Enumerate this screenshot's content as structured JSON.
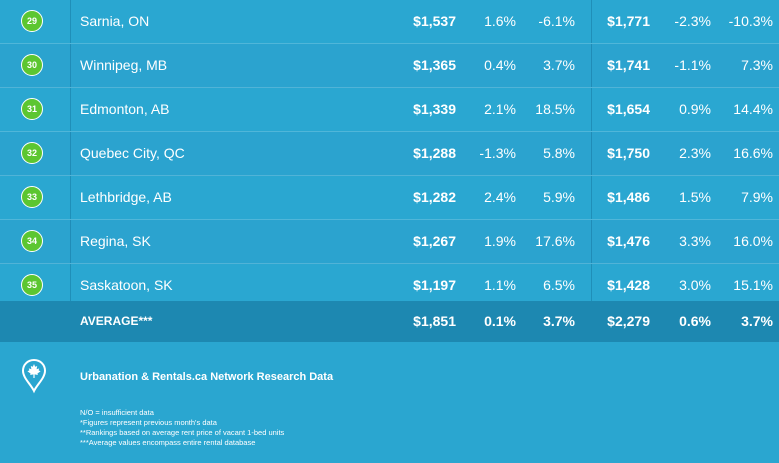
{
  "rows": [
    {
      "rank": "29",
      "city": "Sarnia, ON",
      "one_rent": "$1,537",
      "one_mom": "1.6%",
      "one_yoy": "-6.1%",
      "two_rent": "$1,771",
      "two_mom": "-2.3%",
      "two_yoy": "-10.3%"
    },
    {
      "rank": "30",
      "city": "Winnipeg, MB",
      "one_rent": "$1,365",
      "one_mom": "0.4%",
      "one_yoy": "3.7%",
      "two_rent": "$1,741",
      "two_mom": "-1.1%",
      "two_yoy": "7.3%"
    },
    {
      "rank": "31",
      "city": "Edmonton, AB",
      "one_rent": "$1,339",
      "one_mom": "2.1%",
      "one_yoy": "18.5%",
      "two_rent": "$1,654",
      "two_mom": "0.9%",
      "two_yoy": "14.4%"
    },
    {
      "rank": "32",
      "city": "Quebec City, QC",
      "one_rent": "$1,288",
      "one_mom": "-1.3%",
      "one_yoy": "5.8%",
      "two_rent": "$1,750",
      "two_mom": "2.3%",
      "two_yoy": "16.6%"
    },
    {
      "rank": "33",
      "city": "Lethbridge, AB",
      "one_rent": "$1,282",
      "one_mom": "2.4%",
      "one_yoy": "5.9%",
      "two_rent": "$1,486",
      "two_mom": "1.5%",
      "two_yoy": "7.9%"
    },
    {
      "rank": "34",
      "city": "Regina, SK",
      "one_rent": "$1,267",
      "one_mom": "1.9%",
      "one_yoy": "17.6%",
      "two_rent": "$1,476",
      "two_mom": "3.3%",
      "two_yoy": "16.0%"
    },
    {
      "rank": "35",
      "city": "Saskatoon, SK",
      "one_rent": "$1,197",
      "one_mom": "1.1%",
      "one_yoy": "6.5%",
      "two_rent": "$1,428",
      "two_mom": "3.0%",
      "two_yoy": "15.1%"
    }
  ],
  "average": {
    "label": "AVERAGE***",
    "one_rent": "$1,851",
    "one_mom": "0.1%",
    "one_yoy": "3.7%",
    "two_rent": "$2,279",
    "two_mom": "0.6%",
    "two_yoy": "3.7%"
  },
  "footer": {
    "source": "Urbanation & Rentals.ca Network Research Data",
    "notes": [
      "N/O = insufficient data",
      "*Figures represent previous month's data",
      "**Rankings based on average rent price of vacant 1-bed units",
      "***Average values encompass entire rental database"
    ],
    "icon": "maple-leaf-pin-icon"
  },
  "colors": {
    "rank_badge": "#5cc631",
    "background": "#2aa6d0",
    "average_row": "#1d88b1"
  }
}
